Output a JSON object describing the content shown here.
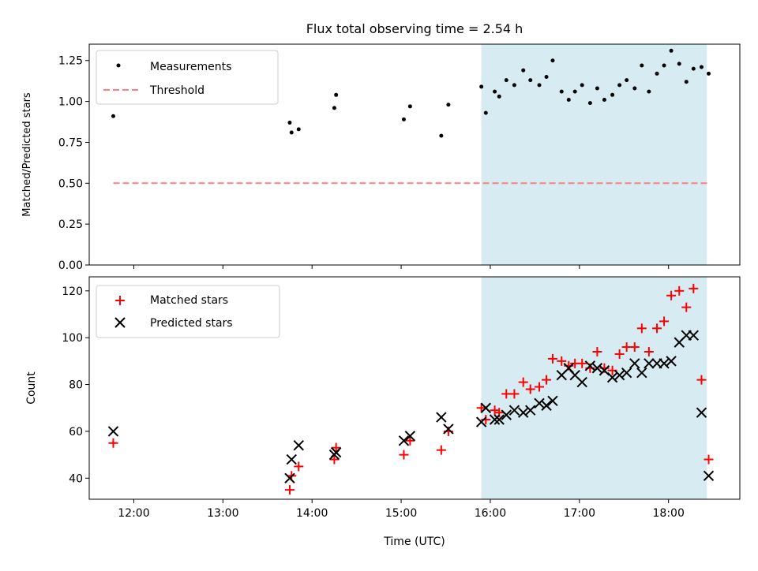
{
  "chart_data": [
    {
      "type": "scatter",
      "title": "Flux total observing time = 2.54 h",
      "xlabel": "",
      "ylabel": "Matched/Predicted stars",
      "xlim": [
        11.5,
        18.8
      ],
      "ylim": [
        0,
        1.35
      ],
      "yticks": [
        0,
        0.25,
        0.5,
        0.75,
        1.0,
        1.25
      ],
      "ytick_labels": [
        "0.00",
        "0.25",
        "0.50",
        "0.75",
        "1.00",
        "1.25"
      ],
      "shaded_region": [
        15.9,
        18.43
      ],
      "legend": {
        "position": "top-left",
        "entries": [
          "Measurements",
          "Threshold"
        ]
      },
      "threshold": {
        "name": "Threshold",
        "value": 0.5,
        "x_range": [
          11.77,
          18.45
        ],
        "color": "#ff7f7f"
      },
      "series": [
        {
          "name": "Measurements",
          "marker": "dot",
          "color": "#000000",
          "x": [
            11.77,
            13.75,
            13.77,
            13.85,
            14.25,
            14.27,
            15.03,
            15.1,
            15.45,
            15.53,
            15.9,
            15.95,
            16.05,
            16.1,
            16.18,
            16.27,
            16.37,
            16.45,
            16.55,
            16.63,
            16.7,
            16.8,
            16.88,
            16.95,
            17.03,
            17.12,
            17.2,
            17.28,
            17.37,
            17.45,
            17.53,
            17.62,
            17.7,
            17.78,
            17.87,
            17.95,
            18.03,
            18.12,
            18.2,
            18.28,
            18.37,
            18.45
          ],
          "y": [
            0.91,
            0.87,
            0.81,
            0.83,
            0.96,
            1.04,
            0.89,
            0.97,
            0.79,
            0.98,
            1.09,
            0.93,
            1.06,
            1.03,
            1.13,
            1.1,
            1.19,
            1.13,
            1.1,
            1.15,
            1.25,
            1.06,
            1.01,
            1.06,
            1.1,
            0.99,
            1.08,
            1.01,
            1.04,
            1.1,
            1.13,
            1.08,
            1.22,
            1.06,
            1.17,
            1.22,
            1.31,
            1.23,
            1.12,
            1.2,
            1.21,
            1.17
          ]
        }
      ]
    },
    {
      "type": "scatter",
      "title": "",
      "xlabel": "Time (UTC)",
      "ylabel": "Count",
      "xlim": [
        11.5,
        18.8
      ],
      "ylim": [
        31,
        126
      ],
      "xticks": [
        12,
        13,
        14,
        15,
        16,
        17,
        18
      ],
      "xtick_labels": [
        "12:00",
        "13:00",
        "14:00",
        "15:00",
        "16:00",
        "17:00",
        "18:00"
      ],
      "yticks": [
        40,
        60,
        80,
        100,
        120
      ],
      "ytick_labels": [
        "40",
        "60",
        "80",
        "100",
        "120"
      ],
      "shaded_region": [
        15.9,
        18.43
      ],
      "legend": {
        "position": "top-left",
        "entries": [
          "Matched stars",
          "Predicted stars"
        ]
      },
      "series": [
        {
          "name": "Matched stars",
          "marker": "plus",
          "color": "#ff0000",
          "x": [
            11.77,
            13.75,
            13.77,
            13.85,
            14.25,
            14.27,
            15.03,
            15.1,
            15.45,
            15.53,
            15.9,
            15.95,
            16.05,
            16.1,
            16.18,
            16.27,
            16.37,
            16.45,
            16.55,
            16.63,
            16.7,
            16.8,
            16.88,
            16.95,
            17.03,
            17.12,
            17.2,
            17.28,
            17.37,
            17.45,
            17.53,
            17.62,
            17.7,
            17.78,
            17.87,
            17.95,
            18.03,
            18.12,
            18.2,
            18.28,
            18.37,
            18.45
          ],
          "y": [
            55,
            35,
            41,
            45,
            48,
            53,
            50,
            56,
            52,
            60,
            70,
            65,
            69,
            68,
            76,
            76,
            81,
            78,
            79,
            82,
            91,
            90,
            88,
            89,
            89,
            87,
            94,
            87,
            86,
            93,
            96,
            96,
            104,
            94,
            104,
            107,
            118,
            120,
            113,
            121,
            82,
            48
          ]
        },
        {
          "name": "Predicted stars",
          "marker": "x",
          "color": "#000000",
          "x": [
            11.77,
            13.75,
            13.77,
            13.85,
            14.25,
            14.27,
            15.03,
            15.1,
            15.45,
            15.53,
            15.9,
            15.95,
            16.05,
            16.1,
            16.18,
            16.27,
            16.37,
            16.45,
            16.55,
            16.63,
            16.7,
            16.8,
            16.88,
            16.95,
            17.03,
            17.12,
            17.2,
            17.28,
            17.37,
            17.45,
            17.53,
            17.62,
            17.7,
            17.78,
            17.87,
            17.95,
            18.03,
            18.12,
            18.2,
            18.28,
            18.37,
            18.45
          ],
          "y": [
            60,
            40,
            48,
            54,
            50,
            51,
            56,
            58,
            66,
            61,
            64,
            70,
            65,
            65,
            67,
            69,
            68,
            69,
            72,
            71,
            73,
            84,
            87,
            84,
            81,
            88,
            87,
            86,
            83,
            84,
            85,
            89,
            85,
            89,
            89,
            89,
            90,
            98,
            101,
            101,
            68,
            41
          ]
        }
      ]
    }
  ]
}
